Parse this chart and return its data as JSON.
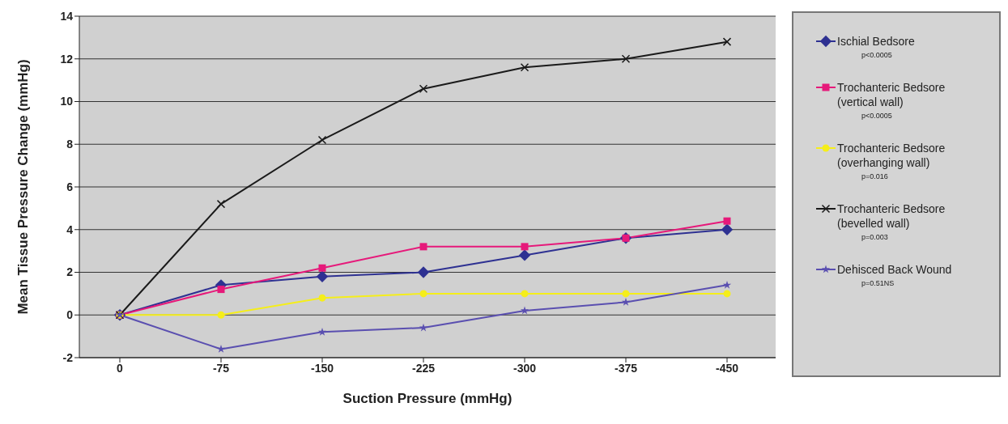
{
  "chart_data": {
    "type": "line",
    "xlabel": "Suction Pressure (mmHg)",
    "ylabel": "Mean Tissue Pressure Change (mmHg)",
    "categories": [
      "0",
      "-75",
      "-150",
      "-225",
      "-300",
      "-375",
      "-450"
    ],
    "series": [
      {
        "name": "Ischial Bedsore",
        "color": "#2e3192",
        "marker": "diamond",
        "values": [
          0,
          1.4,
          1.8,
          2.0,
          2.8,
          3.6,
          4.0
        ]
      },
      {
        "name": "Trochanteric Bedsore (vertical wall)",
        "color": "#e6197a",
        "marker": "square",
        "values": [
          0,
          1.2,
          2.2,
          3.2,
          3.2,
          3.6,
          4.4
        ]
      },
      {
        "name": "Trochanteric Bedsore (overhanging wall)",
        "color": "#f5ee1a",
        "marker": "circle",
        "values": [
          0,
          0,
          0.8,
          1.0,
          1.0,
          1.0,
          1.0
        ]
      },
      {
        "name": "Trochanteric Bedsore (bevelled wall)",
        "color": "#1a1a1a",
        "marker": "cross",
        "values": [
          0,
          5.2,
          8.2,
          10.6,
          11.6,
          12.0,
          12.8
        ]
      },
      {
        "name": "Dehisced Back Wound",
        "color": "#5a4fb0",
        "marker": "star",
        "values": [
          0,
          -1.6,
          -0.8,
          -0.6,
          0.2,
          0.6,
          1.4
        ]
      }
    ],
    "annotations": [
      "p<0.0005",
      "p<0.0005",
      "p=0.016",
      "p=0.003",
      "p=0.51NS"
    ],
    "ylim": [
      -2,
      14
    ],
    "yticks": [
      -2,
      0,
      2,
      4,
      6,
      8,
      10,
      12,
      14
    ],
    "grid": "y",
    "legend": "right",
    "line_style": "solid"
  }
}
